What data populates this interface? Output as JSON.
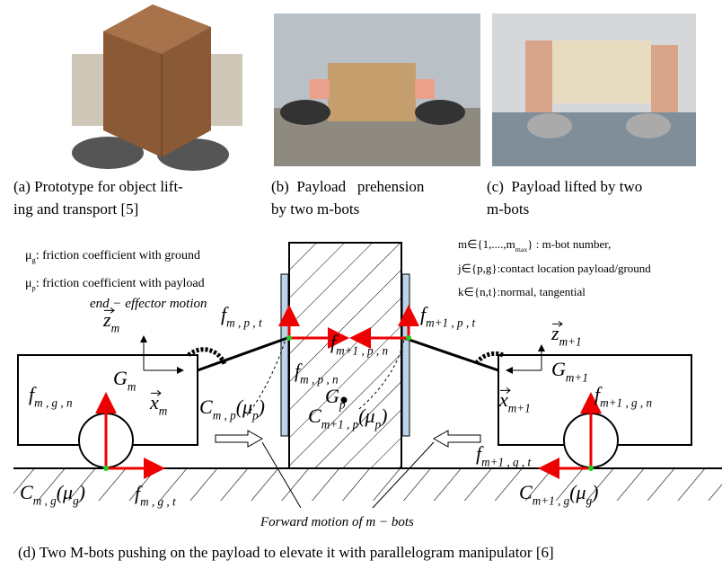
{
  "captions": {
    "a": [
      "(a) Prototype for object lift-",
      "ing and transport [5]"
    ],
    "b": [
      "(b)  Payload   prehension",
      "by two m-bots"
    ],
    "c": [
      "(c)  Payload lifted by two",
      "m-bots"
    ],
    "d": "(d) Two M-bots pushing on the payload to elevate it with parallelogram manipulator [6]"
  },
  "diagram": {
    "labels": [
      [
        {
          "t": "μ"
        },
        {
          "s": "g"
        },
        {
          "t": ": friction coefficient with ground"
        }
      ],
      [
        {
          "t": "μ"
        },
        {
          "s": "p"
        },
        {
          "t": ": friction coefficient with payload"
        }
      ],
      [
        {
          "t": "end − effector motion"
        }
      ],
      [
        {
          "t": "m∈{1,....,m"
        },
        {
          "s": "max"
        },
        {
          "t": "} : m-bot number,"
        }
      ],
      [
        {
          "t": "j∈{p,g}:contact location payload/ground"
        }
      ],
      [
        {
          "t": "k∈{n,t}:normal, tangential"
        }
      ],
      [
        {
          "t": "z"
        },
        {
          "s": "m"
        }
      ],
      [
        {
          "t": "f"
        },
        {
          "s": "m , p , t"
        }
      ],
      [
        {
          "t": "f"
        },
        {
          "s": "m+1 , p , t"
        }
      ],
      [
        {
          "t": "f"
        },
        {
          "s": "m+1 , p , n"
        }
      ],
      [
        {
          "t": "f"
        },
        {
          "s": "m , p , n"
        }
      ],
      [
        {
          "t": "G"
        },
        {
          "s": "m"
        }
      ],
      [
        {
          "t": "G"
        },
        {
          "s": "p"
        }
      ],
      [
        {
          "t": "x"
        },
        {
          "s": "m"
        }
      ],
      [
        {
          "t": "C"
        },
        {
          "s": "m , p"
        },
        {
          "t": "(μ"
        },
        {
          "s": "p"
        },
        {
          "t": ")"
        }
      ],
      [
        {
          "t": "C"
        },
        {
          "s": "m+1 , p"
        },
        {
          "t": "(μ"
        },
        {
          "s": "p"
        },
        {
          "t": ")"
        }
      ],
      [
        {
          "t": "z"
        },
        {
          "s": "m+1"
        }
      ],
      [
        {
          "t": "G"
        },
        {
          "s": "m+1"
        }
      ],
      [
        {
          "t": "x"
        },
        {
          "s": "m+1"
        }
      ],
      [
        {
          "t": "f"
        },
        {
          "s": "m , g , n"
        }
      ],
      [
        {
          "t": "f"
        },
        {
          "s": "m+1 , g , n"
        }
      ],
      [
        {
          "t": "f"
        },
        {
          "s": "m+1 , g , t"
        }
      ],
      [
        {
          "t": "f"
        },
        {
          "s": "m , g , t"
        }
      ],
      [
        {
          "t": "C"
        },
        {
          "s": "m , g"
        },
        {
          "t": "(μ"
        },
        {
          "s": "g"
        },
        {
          "t": ")"
        }
      ],
      [
        {
          "t": "C"
        },
        {
          "s": "m+1 , g"
        },
        {
          "t": "(μ"
        },
        {
          "s": "g"
        },
        {
          "t": ")"
        }
      ],
      [
        {
          "t": "Forward motion of m − bots"
        }
      ]
    ]
  }
}
